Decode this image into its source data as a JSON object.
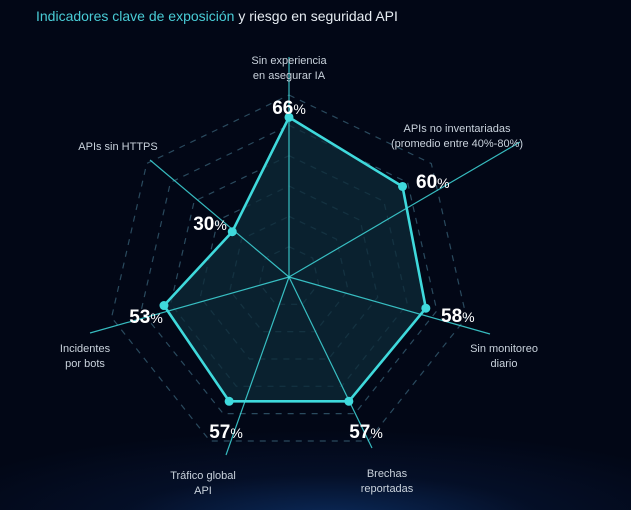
{
  "title": {
    "highlight": "Indicadores clave de exposición",
    "rest": " y riesgo en seguridad API"
  },
  "chart_data": {
    "type": "radar",
    "title": "Indicadores clave de exposición y riesgo en seguridad API",
    "unit": "%",
    "axes": [
      {
        "label": [
          "Sin experiencia",
          "en asegurar IA"
        ],
        "value": 66
      },
      {
        "label": [
          "APIs no inventariadas",
          "(promedio entre 40%-80%)"
        ],
        "value": 60
      },
      {
        "label": [
          "Sin monitoreo",
          "diario"
        ],
        "value": 58
      },
      {
        "label": [
          "Brechas",
          "reportadas"
        ],
        "value": 57
      },
      {
        "label": [
          "Tráfico global",
          "API"
        ],
        "value": 57
      },
      {
        "label": [
          "Incidentes",
          "por bots"
        ],
        "value": 53
      },
      {
        "label": [
          "APIs sin HTTPS"
        ],
        "value": 30
      }
    ],
    "grid": true,
    "legend": "none"
  },
  "colors": {
    "accent": "#3fd9dc",
    "background": "#020716",
    "grid": "#2a4a5e",
    "fill": "#0d2b38"
  }
}
